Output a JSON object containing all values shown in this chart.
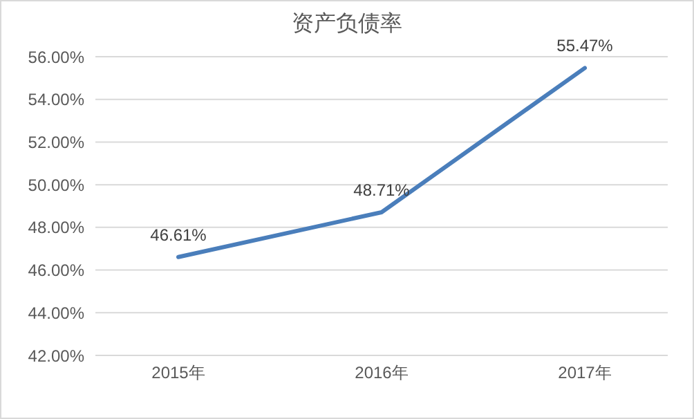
{
  "chart_data": {
    "type": "line",
    "title": "资产负债率",
    "categories": [
      "2015年",
      "2016年",
      "2017年"
    ],
    "series": [
      {
        "color": "#4a7ebb",
        "values": [
          46.61,
          48.71,
          55.47
        ],
        "value_labels": [
          "46.61%",
          "48.71%",
          "55.47%"
        ]
      }
    ],
    "ylim": [
      42,
      56
    ],
    "yticks": [
      {
        "value": 42,
        "label": "42.00%"
      },
      {
        "value": 44,
        "label": "44.00%"
      },
      {
        "value": 46,
        "label": "46.00%"
      },
      {
        "value": 48,
        "label": "48.00%"
      },
      {
        "value": 50,
        "label": "50.00%"
      },
      {
        "value": 52,
        "label": "52.00%"
      },
      {
        "value": 54,
        "label": "54.00%"
      },
      {
        "value": 56,
        "label": "56.00%"
      }
    ],
    "grid": "y",
    "legend": false,
    "marker": "none",
    "line_style": "solid"
  }
}
